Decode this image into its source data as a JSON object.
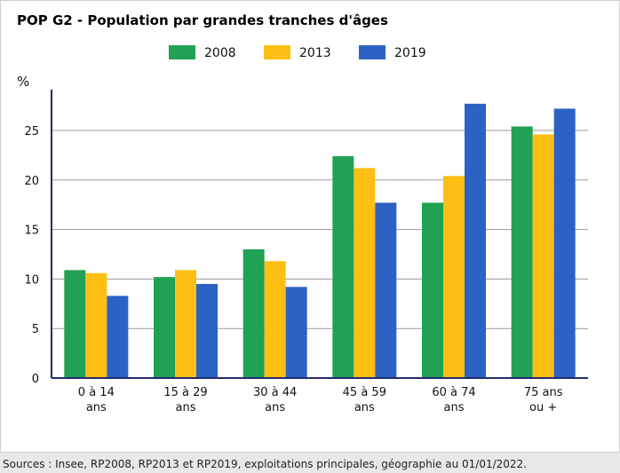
{
  "title": "POP G2 - Population par grandes tranches d'âges",
  "source": "Sources : Insee, RP2008, RP2013 et RP2019, exploitations principales, géographie au 01/01/2022.",
  "chart_data": {
    "type": "bar",
    "title": "POP G2 - Population par grandes tranches d'âges",
    "ylabel": "%",
    "xlabel": "",
    "ylim": [
      0,
      29
    ],
    "yticks": [
      0,
      5,
      10,
      15,
      20,
      25
    ],
    "grid": true,
    "legend_position": "top-center",
    "categories": [
      [
        "0 à 14",
        "ans"
      ],
      [
        "15 à 29",
        "ans"
      ],
      [
        "30 à 44",
        "ans"
      ],
      [
        "45 à 59",
        "ans"
      ],
      [
        "60 à 74",
        "ans"
      ],
      [
        "75 ans",
        "ou +"
      ]
    ],
    "series": [
      {
        "name": "2008",
        "color": "#21a153",
        "values": [
          10.9,
          10.2,
          13.0,
          22.4,
          17.7,
          25.4
        ]
      },
      {
        "name": "2013",
        "color": "#fdbf14",
        "values": [
          10.6,
          10.9,
          11.8,
          21.2,
          20.4,
          24.6
        ]
      },
      {
        "name": "2019",
        "color": "#2b62c4",
        "values": [
          8.3,
          9.5,
          9.2,
          17.7,
          27.7,
          27.2
        ]
      }
    ]
  }
}
